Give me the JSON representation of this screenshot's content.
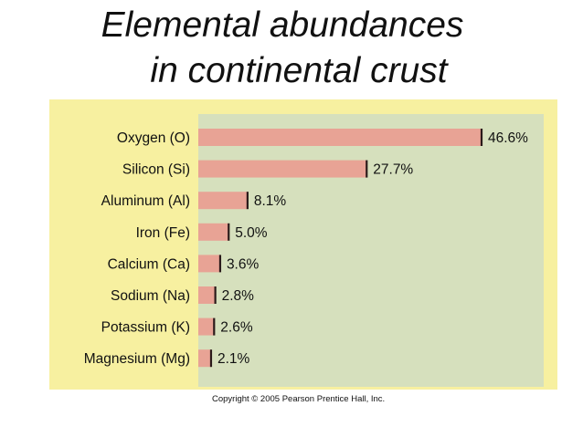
{
  "title": {
    "line1": "Elemental abundances",
    "line2": "in continental crust"
  },
  "colors": {
    "outer_panel": "#f7f0a0",
    "plot_area": "#d6e0bd",
    "bar_fill": "#e8a395",
    "bar_edge": "#2a1a1a"
  },
  "chart_data": {
    "type": "bar",
    "orientation": "horizontal",
    "title": "Elemental abundances in continental crust",
    "categories": [
      "Oxygen (O)",
      "Silicon (Si)",
      "Aluminum (Al)",
      "Iron (Fe)",
      "Calcium (Ca)",
      "Sodium (Na)",
      "Potassium (K)",
      "Magnesium (Mg)"
    ],
    "values": [
      46.6,
      27.7,
      8.1,
      5.0,
      3.6,
      2.8,
      2.6,
      2.1
    ],
    "value_labels": [
      "46.6%",
      "27.7%",
      "8.1%",
      "5.0%",
      "3.6%",
      "2.8%",
      "2.6%",
      "2.1%"
    ],
    "unit": "%",
    "xlim": [
      0,
      46.6
    ],
    "grid": false,
    "legend": "none"
  },
  "copyright": "Copyright © 2005 Pearson Prentice Hall, Inc."
}
